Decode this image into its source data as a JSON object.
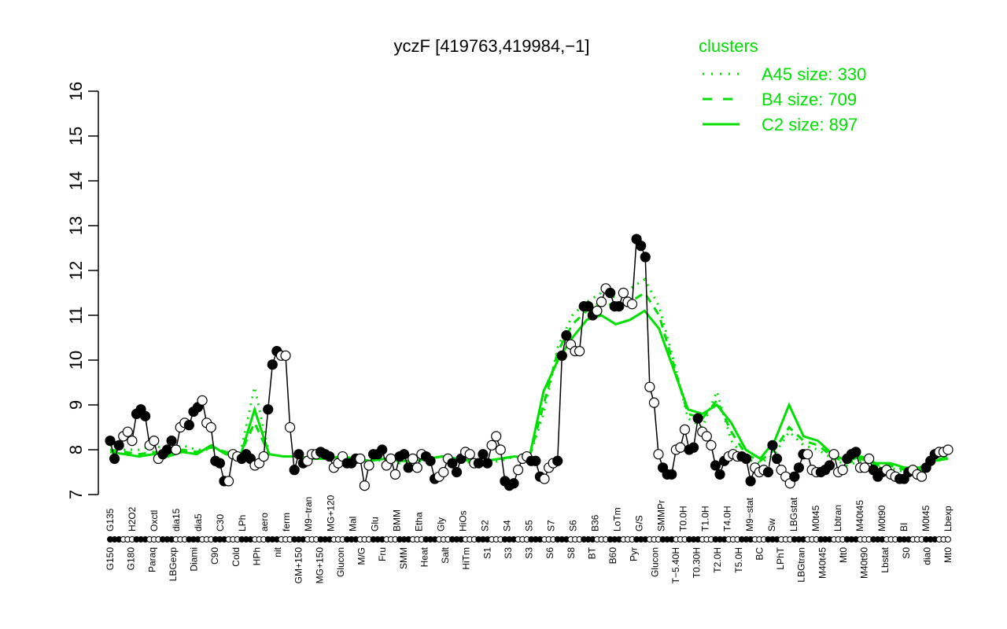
{
  "chart_data": {
    "type": "line",
    "title": "yczF [419763,419984,−1]",
    "xlabel": "",
    "ylabel": "",
    "ylim": [
      7,
      16
    ],
    "yticks": [
      7,
      8,
      9,
      10,
      11,
      12,
      13,
      14,
      15,
      16
    ],
    "grid": false,
    "legend": {
      "title": "clusters",
      "placement": "top-right",
      "entries": [
        {
          "label": "A45 size: 330",
          "style": "dotted"
        },
        {
          "label": "B4 size: 709",
          "style": "dashed"
        },
        {
          "label": "C2 size: 897",
          "style": "solid"
        }
      ]
    },
    "colors": {
      "data": "#000000",
      "clusters": "#00e000"
    },
    "x_labels_top": [
      "G135",
      "H2O2",
      "Oxctl",
      "dia15",
      "dia5",
      "C30",
      "LPh",
      "aero",
      "ferm",
      "M9−tran",
      "MG+120",
      "Mal",
      "Glu",
      "BMM",
      "Etha",
      "Gly",
      "HiOs",
      "S2",
      "S4",
      "S5",
      "S7",
      "S6",
      "B36",
      "LoTm",
      "G/S",
      "SMMPr",
      "T0.0H",
      "T1.0H",
      "T4.0H",
      "M9−stat",
      "Sw",
      "LBGstat",
      "M0t45",
      "Lbtran",
      "M40t45",
      "M0t90",
      "BI",
      "M0t45",
      "Lbexp"
    ],
    "x_labels_bottom": [
      "G150",
      "G180",
      "Paraq",
      "LBGexp",
      "Diami",
      "C90",
      "Cold",
      "HPh",
      "nit",
      "GM+150",
      "MG+150",
      "Glucon",
      "M/G",
      "Fru",
      "SMM",
      "Heat",
      "Salt",
      "HiTm",
      "S1",
      "S3",
      "S3",
      "S6",
      "S8",
      "BT",
      "B60",
      "Pyr",
      "Glucon",
      "T−5.40H",
      "T0.30H",
      "T2.0H",
      "T5.0H",
      "BC",
      "LPhT",
      "LBGtran",
      "M40t45",
      "Mt0",
      "M40t90",
      "Lbstat",
      "S0",
      "dia0",
      "Mt0"
    ],
    "series": [
      {
        "name": "",
        "role": "expression",
        "values": [
          8.2,
          7.8,
          8.1,
          8.3,
          8.4,
          8.2,
          8.8,
          8.9,
          8.75,
          8.1,
          8.2,
          7.8,
          7.9,
          8.0,
          8.2,
          8.0,
          8.5,
          8.6,
          8.55,
          8.85,
          8.95,
          9.1,
          8.6,
          8.5,
          7.75,
          7.7,
          7.3,
          7.3,
          7.9,
          7.85,
          7.8,
          7.9,
          7.8,
          7.65,
          7.7,
          7.85,
          8.9,
          9.9,
          10.2,
          10.1,
          10.1,
          8.5,
          7.55,
          7.9,
          7.7,
          7.75,
          7.9,
          7.9,
          7.95,
          7.9,
          7.85,
          7.6,
          7.7,
          7.85,
          7.7,
          7.7,
          7.8,
          7.8,
          7.2,
          7.65,
          7.9,
          7.9,
          8.0,
          7.65,
          7.8,
          7.45,
          7.85,
          7.9,
          7.6,
          7.8,
          7.6,
          7.9,
          7.85,
          7.75,
          7.35,
          7.4,
          7.5,
          7.8,
          7.7,
          7.5,
          7.8,
          7.95,
          7.9,
          7.7,
          7.7,
          7.9,
          7.7,
          8.1,
          8.3,
          8.0,
          7.3,
          7.2,
          7.25,
          7.55,
          7.8,
          7.85,
          7.75,
          7.75,
          7.4,
          7.35,
          7.6,
          7.7,
          7.75,
          10.1,
          10.55,
          10.35,
          10.2,
          10.2,
          11.2,
          11.2,
          11.0,
          11.1,
          11.3,
          11.6,
          11.5,
          11.2,
          11.2,
          11.5,
          11.3,
          11.25,
          12.7,
          12.55,
          12.3,
          9.4,
          9.05,
          7.9,
          7.6,
          7.45,
          7.45,
          8.0,
          8.05,
          8.45,
          8.0,
          8.05,
          8.7,
          8.4,
          8.3,
          8.1,
          7.65,
          7.45,
          7.75,
          7.85,
          7.9,
          7.85,
          7.85,
          7.8,
          7.3,
          7.6,
          7.5,
          7.55,
          7.5,
          8.1,
          7.8,
          7.55,
          7.4,
          7.25,
          7.4,
          7.6,
          7.9,
          7.9,
          7.55,
          7.5,
          7.5,
          7.55,
          7.65,
          7.9,
          7.5,
          7.55,
          7.8,
          7.9,
          7.95,
          7.6,
          7.6,
          7.8,
          7.55,
          7.4,
          7.5,
          7.55,
          7.45,
          7.4,
          7.35,
          7.35,
          7.5,
          7.55,
          7.45,
          7.4,
          7.6,
          7.75,
          7.9,
          7.95,
          7.95,
          8.0
        ]
      },
      {
        "name": "C2 size: 897",
        "role": "cluster",
        "style": "solid",
        "values": [
          7.95,
          7.9,
          7.85,
          7.9,
          7.85,
          7.95,
          7.9,
          8.1,
          7.9,
          7.85,
          8.9,
          7.9,
          7.85,
          7.85,
          7.8,
          7.8,
          7.85,
          7.8,
          7.75,
          7.8,
          7.75,
          7.75,
          7.8,
          7.85,
          7.8,
          7.75,
          7.75,
          7.8,
          7.85,
          7.8,
          9.3,
          10.0,
          10.5,
          10.9,
          11.0,
          10.8,
          10.9,
          11.1,
          10.7,
          9.8,
          8.9,
          8.8,
          9.0,
          8.6,
          8.0,
          7.8,
          8.2,
          9.0,
          8.3,
          8.2,
          7.9,
          7.75,
          7.85,
          7.7,
          7.7,
          7.6,
          7.6,
          7.75,
          7.8
        ]
      },
      {
        "name": "B4 size: 709",
        "role": "cluster",
        "style": "dashed",
        "values": [
          8.0,
          7.95,
          7.9,
          7.95,
          7.9,
          8.0,
          7.95,
          8.05,
          7.95,
          7.9,
          8.6,
          7.9,
          7.85,
          7.85,
          7.8,
          7.8,
          7.85,
          7.8,
          7.75,
          7.8,
          7.75,
          7.75,
          7.8,
          7.85,
          7.8,
          7.75,
          7.75,
          7.8,
          7.85,
          7.8,
          9.0,
          10.2,
          10.8,
          11.1,
          11.3,
          11.2,
          11.3,
          11.5,
          11.0,
          9.9,
          8.8,
          8.7,
          9.1,
          8.4,
          7.9,
          7.75,
          8.0,
          8.5,
          8.2,
          8.1,
          7.85,
          7.7,
          7.8,
          7.65,
          7.65,
          7.55,
          7.55,
          7.75,
          7.85
        ]
      },
      {
        "name": "A45 size: 330",
        "role": "cluster",
        "style": "dotted",
        "values": [
          8.1,
          8.0,
          8.0,
          8.1,
          8.0,
          8.1,
          8.0,
          8.0,
          7.95,
          7.9,
          9.4,
          7.9,
          7.85,
          7.85,
          7.8,
          7.8,
          7.85,
          7.8,
          7.7,
          7.8,
          7.7,
          7.7,
          7.8,
          7.85,
          7.8,
          7.7,
          7.7,
          7.75,
          7.85,
          7.8,
          8.8,
          10.3,
          11.0,
          11.3,
          11.5,
          11.4,
          11.6,
          11.8,
          11.2,
          10.0,
          8.7,
          8.5,
          9.3,
          8.2,
          7.8,
          7.7,
          7.9,
          8.4,
          8.1,
          8.0,
          7.8,
          7.65,
          7.75,
          7.6,
          7.6,
          7.5,
          7.5,
          7.7,
          7.85
        ]
      }
    ]
  }
}
